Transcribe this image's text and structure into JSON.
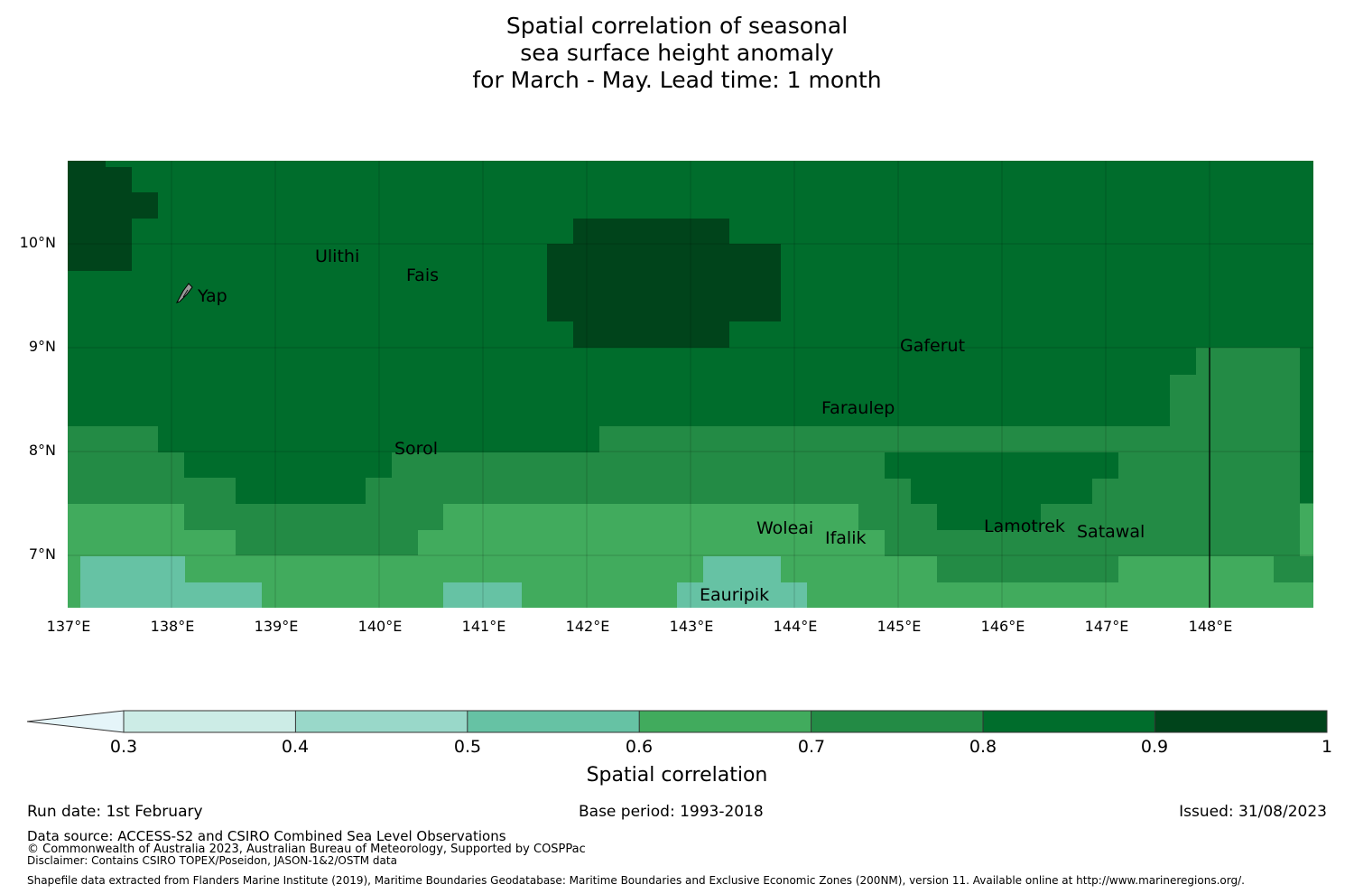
{
  "title": {
    "line1": "Spatial correlation of seasonal",
    "line2": "sea surface height anomaly",
    "line3": "for March - May. Lead time: 1 month"
  },
  "map": {
    "lat_labels": [
      "10°N",
      "9°N",
      "8°N",
      "7°N"
    ],
    "lon_labels": [
      "137°E",
      "138°E",
      "139°E",
      "140°E",
      "141°E",
      "142°E",
      "143°E",
      "144°E",
      "145°E",
      "146°E",
      "147°E",
      "148°E"
    ],
    "places": [
      "Ulithi",
      "Fais",
      "Yap",
      "Gaferut",
      "Faraulep",
      "Sorol",
      "Woleai",
      "Ifalik",
      "Lamotrek",
      "Satawal",
      "Eauripik"
    ],
    "colors": {
      "c09": "#00441b",
      "c08": "#006d2c",
      "c07": "#238b45",
      "c06": "#41ab5d",
      "c05": "#66c2a4",
      "c04": "#99d8c9",
      "c03": "#ccece6",
      "under": "#e5f5f9"
    }
  },
  "colorbar": {
    "ticks": [
      "0.3",
      "0.4",
      "0.5",
      "0.6",
      "0.7",
      "0.8",
      "0.9",
      "1"
    ],
    "label": "Spatial correlation"
  },
  "footer": {
    "run_date": "Run date: 1st February",
    "base_period": "Base period: 1993-2018",
    "issued": "Issued: 31/08/2023",
    "data_source": "Data source: ACCESS-S2 and CSIRO Combined Sea Level Observations",
    "copyright": "© Commonwealth of Australia 2023, Australian Bureau of Meteorology, Supported by COSPPac",
    "disclaimer": "Disclaimer: Contains CSIRO TOPEX/Poseidon, JASON-1&2/OSTM data",
    "shapefile": "Shapefile data extracted from Flanders Marine Institute (2019), Maritime Boundaries Geodatabase: Maritime Boundaries and Exclusive Economic Zones (200NM), version 11. Available online at http://www.marineregions.org/."
  }
}
